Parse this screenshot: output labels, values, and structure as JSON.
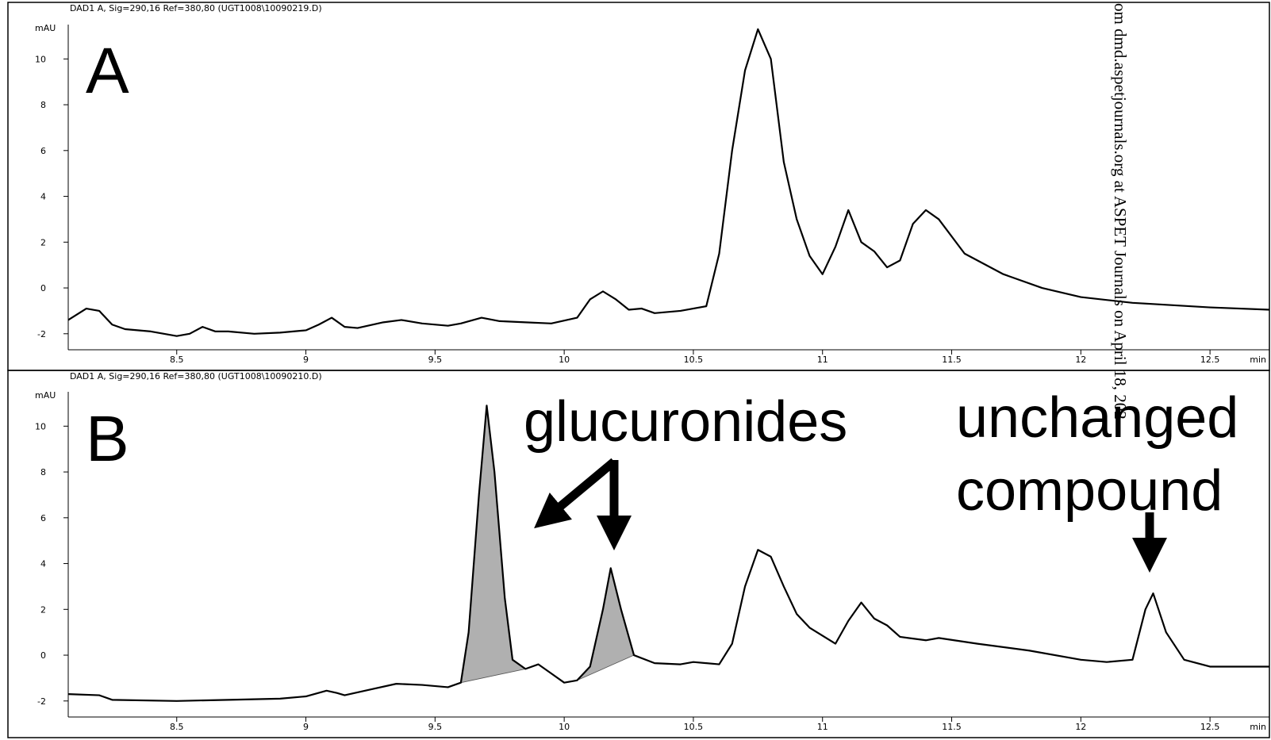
{
  "watermark": "om dmd.aspetjournals.org at ASPET Journals on April 18, 202",
  "chart_data": [
    {
      "type": "line",
      "header": "DAD1 A, Sig=290,16 Ref=380,80 (UGT1008\\10090219.D)",
      "panel_label": "A",
      "ylabel": "mAU",
      "xlabel": "min",
      "xlim": [
        8.08,
        12.73
      ],
      "ylim": [
        -2.7,
        11.5
      ],
      "xticks": [
        8.5,
        9,
        9.5,
        10,
        10.5,
        11,
        11.5,
        12,
        12.5
      ],
      "yticks": [
        -2,
        0,
        2,
        4,
        6,
        8,
        10
      ],
      "x": [
        8.08,
        8.15,
        8.2,
        8.25,
        8.3,
        8.4,
        8.5,
        8.55,
        8.6,
        8.65,
        8.7,
        8.8,
        8.9,
        9.0,
        9.05,
        9.1,
        9.15,
        9.2,
        9.3,
        9.37,
        9.45,
        9.55,
        9.6,
        9.68,
        9.75,
        9.85,
        9.95,
        10.05,
        10.1,
        10.15,
        10.2,
        10.25,
        10.3,
        10.35,
        10.45,
        10.55,
        10.6,
        10.65,
        10.7,
        10.75,
        10.8,
        10.85,
        10.9,
        10.95,
        11.0,
        11.05,
        11.1,
        11.15,
        11.2,
        11.25,
        11.3,
        11.35,
        11.4,
        11.45,
        11.55,
        11.7,
        11.85,
        12.0,
        12.2,
        12.5,
        12.73
      ],
      "series": [
        {
          "color": "#000000",
          "values": [
            -1.4,
            -0.9,
            -1.0,
            -1.6,
            -1.8,
            -1.9,
            -2.1,
            -2.0,
            -1.7,
            -1.9,
            -1.9,
            -2.0,
            -1.95,
            -1.85,
            -1.6,
            -1.3,
            -1.7,
            -1.75,
            -1.5,
            -1.4,
            -1.55,
            -1.65,
            -1.55,
            -1.3,
            -1.45,
            -1.5,
            -1.55,
            -1.3,
            -0.5,
            -0.15,
            -0.5,
            -0.95,
            -0.9,
            -1.1,
            -1.0,
            -0.8,
            1.5,
            6.0,
            9.5,
            11.3,
            10.0,
            5.5,
            3.0,
            1.4,
            0.6,
            1.8,
            3.4,
            2.0,
            1.6,
            0.9,
            1.2,
            2.8,
            3.4,
            3.0,
            1.5,
            0.6,
            0.0,
            -0.4,
            -0.65,
            -0.85,
            -0.95
          ]
        }
      ]
    },
    {
      "type": "line",
      "header": "DAD1 A, Sig=290,16 Ref=380,80 (UGT1008\\10090210.D)",
      "panel_label": "B",
      "ylabel": "mAU",
      "xlabel": "min",
      "xlim": [
        8.08,
        12.73
      ],
      "ylim": [
        -2.7,
        11.5
      ],
      "xticks": [
        8.5,
        9,
        9.5,
        10,
        10.5,
        11,
        11.5,
        12,
        12.5
      ],
      "yticks": [
        -2,
        0,
        2,
        4,
        6,
        8,
        10
      ],
      "annotations": [
        "glucuronides",
        "unchanged",
        "compound"
      ],
      "shade_color": "#b0b0b0",
      "x": [
        8.08,
        8.2,
        8.25,
        8.5,
        8.7,
        8.9,
        9.0,
        9.08,
        9.12,
        9.15,
        9.25,
        9.35,
        9.45,
        9.55,
        9.6,
        9.63,
        9.67,
        9.7,
        9.73,
        9.77,
        9.8,
        9.85,
        9.9,
        9.95,
        10.0,
        10.05,
        10.1,
        10.15,
        10.18,
        10.22,
        10.27,
        10.35,
        10.45,
        10.5,
        10.6,
        10.65,
        10.7,
        10.75,
        10.8,
        10.85,
        10.9,
        10.95,
        11.05,
        11.1,
        11.15,
        11.2,
        11.25,
        11.3,
        11.4,
        11.45,
        11.6,
        11.8,
        12.0,
        12.1,
        12.2,
        12.25,
        12.28,
        12.33,
        12.4,
        12.5,
        12.73
      ],
      "series": [
        {
          "color": "#000000",
          "values": [
            -1.7,
            -1.75,
            -1.95,
            -2.0,
            -1.95,
            -1.9,
            -1.8,
            -1.55,
            -1.65,
            -1.75,
            -1.5,
            -1.25,
            -1.3,
            -1.4,
            -1.2,
            1.0,
            7.0,
            10.9,
            8.0,
            2.5,
            -0.2,
            -0.6,
            -0.4,
            -0.8,
            -1.2,
            -1.1,
            -0.5,
            2.0,
            3.8,
            2.0,
            0.0,
            -0.35,
            -0.4,
            -0.3,
            -0.4,
            0.5,
            3.0,
            4.6,
            4.3,
            3.0,
            1.8,
            1.2,
            0.5,
            1.5,
            2.3,
            1.6,
            1.3,
            0.8,
            0.65,
            0.75,
            0.5,
            0.2,
            -0.2,
            -0.3,
            -0.2,
            2.0,
            2.7,
            1.0,
            -0.2,
            -0.5,
            -0.5
          ]
        }
      ]
    }
  ]
}
